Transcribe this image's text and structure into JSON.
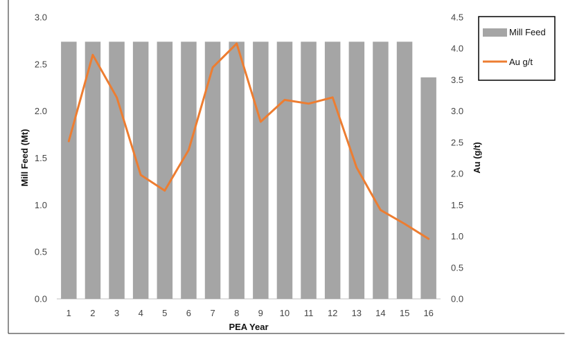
{
  "chart_data": {
    "type": "bar",
    "title": "",
    "xlabel": "PEA Year",
    "ylabel": "Mill Feed (Mt)",
    "y2label": "Au (g/t)",
    "categories": [
      "1",
      "2",
      "3",
      "4",
      "5",
      "6",
      "7",
      "8",
      "9",
      "10",
      "11",
      "12",
      "13",
      "14",
      "15",
      "16"
    ],
    "ylim": [
      0,
      3.0
    ],
    "y2lim": [
      0,
      4.5
    ],
    "yticks": [
      "0.0",
      "0.5",
      "1.0",
      "1.5",
      "2.0",
      "2.5",
      "3.0"
    ],
    "y2ticks": [
      "0.0",
      "0.5",
      "1.0",
      "1.5",
      "2.0",
      "2.5",
      "3.0",
      "3.5",
      "4.0",
      "4.5"
    ],
    "grid": false,
    "legend_position": "right",
    "series": [
      {
        "name": "Mill Feed",
        "type": "bar",
        "axis": "left",
        "color": "#a5a5a5",
        "values": [
          2.74,
          2.74,
          2.74,
          2.74,
          2.74,
          2.74,
          2.74,
          2.74,
          2.74,
          2.74,
          2.74,
          2.74,
          2.74,
          2.74,
          2.74,
          2.36
        ]
      },
      {
        "name": "Au g/t",
        "type": "line",
        "axis": "right",
        "color": "#ed7d31",
        "values": [
          2.52,
          3.9,
          3.22,
          1.98,
          1.73,
          2.38,
          3.7,
          4.08,
          2.83,
          3.18,
          3.12,
          3.22,
          2.1,
          1.42,
          1.2,
          0.96
        ]
      }
    ]
  }
}
